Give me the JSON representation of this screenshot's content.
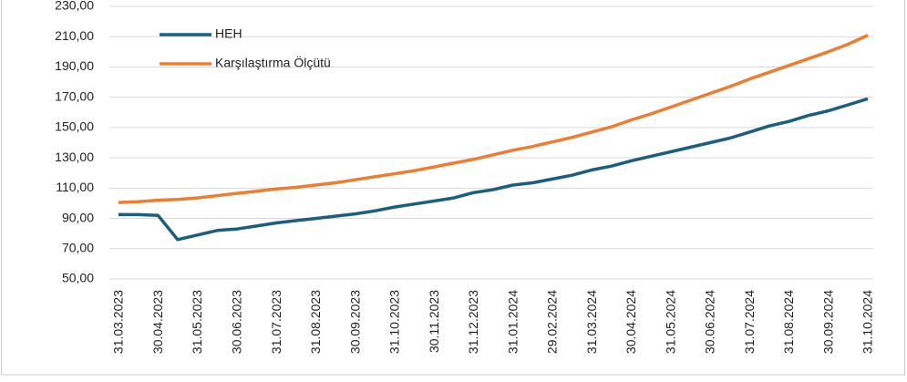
{
  "chart_data": {
    "type": "line",
    "categories": [
      "31.03.2023",
      null,
      "30.04.2023",
      null,
      "31.05.2023",
      null,
      "30.06.2023",
      null,
      "31.07.2023",
      null,
      "31.08.2023",
      null,
      "30.09.2023",
      null,
      "31.10.2023",
      null,
      "30.11.2023",
      null,
      "31.12.2023",
      null,
      "31.01.2024",
      null,
      "29.02.2024",
      null,
      "31.03.2024",
      null,
      "30.04.2024",
      null,
      "31.05.2024",
      null,
      "30.06.2024",
      null,
      "31.07.2024",
      null,
      "31.08.2024",
      null,
      "30.09.2024",
      null,
      "31.10.2024"
    ],
    "series": [
      {
        "name": "HEH",
        "color": "#1b5e7e",
        "values": [
          92.5,
          92.5,
          92,
          76,
          79,
          82,
          83,
          85,
          87,
          88.5,
          90,
          91.5,
          93,
          95,
          97.5,
          99.5,
          101.5,
          103.5,
          107,
          109,
          112,
          113.5,
          116,
          118.5,
          122,
          124.5,
          128,
          131,
          134,
          137,
          140,
          143,
          147,
          151,
          154,
          158,
          161,
          165,
          169
        ]
      },
      {
        "name": "Karşılaştırma Ölçütü",
        "color": "#ed7d31",
        "values": [
          100.5,
          101,
          102,
          102.5,
          103.5,
          105,
          106.5,
          108,
          109.5,
          110.5,
          112,
          113.5,
          115.5,
          117.5,
          119.5,
          121.5,
          124,
          126.5,
          129,
          132,
          135,
          137.5,
          140.5,
          143.5,
          147,
          150.5,
          155,
          159,
          163.5,
          168,
          172.5,
          177,
          182,
          186.5,
          191,
          195.5,
          200,
          205,
          211
        ]
      }
    ],
    "ylim": [
      50,
      230
    ],
    "yticks": [
      {
        "value": 50,
        "label": "50,00"
      },
      {
        "value": 70,
        "label": "70,00"
      },
      {
        "value": 90,
        "label": "90,00"
      },
      {
        "value": 110,
        "label": "110,00"
      },
      {
        "value": 130,
        "label": "130,00"
      },
      {
        "value": 150,
        "label": "150,00"
      },
      {
        "value": 170,
        "label": "170,00"
      },
      {
        "value": 190,
        "label": "190,00"
      },
      {
        "value": 210,
        "label": "210,00"
      },
      {
        "value": 230,
        "label": "230,00"
      }
    ],
    "grid": true,
    "legend": "top-left"
  }
}
